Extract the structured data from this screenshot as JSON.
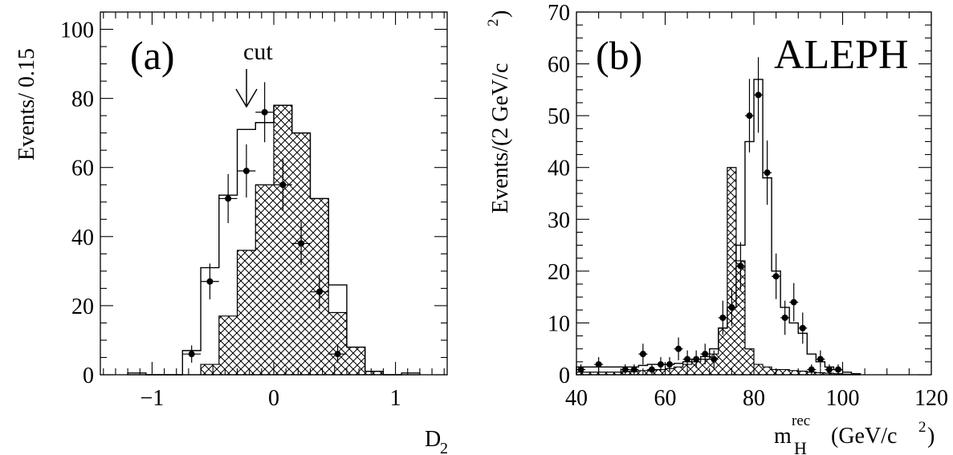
{
  "chart_data": [
    {
      "type": "histogram",
      "panel_label": "(a)",
      "xlabel_main": "D",
      "xlabel_sub": "2",
      "ylabel": "Events/ 0.15",
      "xlim": [
        -1.425,
        1.425
      ],
      "ylim": [
        0,
        105
      ],
      "xticks": [
        -1,
        0,
        1
      ],
      "xtick_labels": [
        "−1",
        "0",
        "1"
      ],
      "yticks": [
        0,
        20,
        40,
        60,
        80,
        100
      ],
      "ytick_labels": [
        "0",
        "20",
        "40",
        "60",
        "80",
        "100"
      ],
      "annotation": {
        "text": "cut",
        "x": -0.3
      },
      "bin_edges": [
        -1.2,
        -1.05,
        -0.9,
        -0.75,
        -0.6,
        -0.45,
        -0.3,
        -0.15,
        0.0,
        0.15,
        0.3,
        0.45,
        0.6,
        0.75,
        0.9,
        1.05,
        1.2
      ],
      "total_mc": [
        0.5,
        0,
        0,
        7,
        31,
        52,
        71,
        73,
        78,
        70,
        51,
        26,
        8,
        1,
        0,
        0.5
      ],
      "hatched_mc": [
        0,
        0,
        0,
        0,
        3,
        17,
        36,
        55,
        78,
        70,
        51,
        18,
        8,
        1,
        0,
        0
      ],
      "data_points": {
        "x": [
          -0.675,
          -0.525,
          -0.375,
          -0.225,
          -0.075,
          0.075,
          0.225,
          0.375,
          0.525
        ],
        "y": [
          6,
          27,
          51,
          59,
          76,
          55,
          38,
          24,
          6
        ],
        "err": [
          2.5,
          5.2,
          7.1,
          7.7,
          8.7,
          7.4,
          6.2,
          4.9,
          2.5
        ]
      }
    },
    {
      "type": "histogram",
      "panel_label": "(b)",
      "brand": "ALEPH",
      "xlabel_main": "m",
      "xlabel_sup": "rec",
      "xlabel_sub": "H",
      "xlabel_unit": "(GeV/c",
      "xlabel_unit_sup": "2",
      "xlabel_close": ")",
      "ylabel_main": "Events/(2 GeV/c",
      "ylabel_sup": "2",
      "ylabel_close": ")",
      "xlim": [
        40,
        120
      ],
      "ylim": [
        0,
        70
      ],
      "xticks": [
        40,
        60,
        80,
        100,
        120
      ],
      "xtick_labels": [
        "40",
        "60",
        "80",
        "100",
        "120"
      ],
      "yticks": [
        0,
        10,
        20,
        30,
        40,
        50,
        60,
        70
      ],
      "ytick_labels": [
        "0",
        "10",
        "20",
        "30",
        "40",
        "50",
        "60",
        "70"
      ],
      "bin_edges": [
        40,
        42,
        44,
        46,
        48,
        50,
        52,
        54,
        56,
        58,
        60,
        62,
        64,
        66,
        68,
        70,
        72,
        74,
        76,
        78,
        80,
        82,
        84,
        86,
        88,
        90,
        92,
        94,
        96,
        98,
        100,
        102,
        104
      ],
      "total_mc": [
        1.5,
        1.5,
        1.5,
        1.5,
        1.5,
        1.5,
        1.5,
        1.8,
        2,
        2,
        2,
        2.2,
        2.5,
        3,
        3.5,
        5,
        9,
        13,
        25,
        45,
        57,
        38,
        20,
        13,
        10,
        8,
        4,
        2.5,
        1.5,
        1,
        0.5,
        0.2
      ],
      "hatched_mc": [
        0.5,
        0.5,
        0.5,
        0.5,
        0.5,
        0.6,
        0.7,
        0.8,
        0.9,
        1,
        1.2,
        1.5,
        2,
        2.5,
        3,
        4,
        9,
        40,
        22,
        5,
        2,
        1.5,
        1,
        1,
        0.8,
        0.7,
        0.5,
        0.4,
        0.3,
        0.2,
        0.1,
        0
      ],
      "data_points": {
        "x": [
          41,
          45,
          51,
          53,
          55,
          57,
          59,
          61,
          63,
          65,
          67,
          69,
          71,
          73,
          75,
          77,
          79,
          81,
          83,
          85,
          87,
          89,
          91,
          93,
          95,
          97,
          99
        ],
        "y": [
          1,
          2,
          1,
          1,
          4,
          1,
          2,
          2,
          5,
          3,
          3,
          4,
          3,
          11,
          13,
          21,
          50,
          54,
          39,
          19,
          11,
          14,
          9,
          1,
          3,
          1,
          1
        ],
        "err": [
          1,
          1.4,
          1,
          1,
          2,
          1,
          1.4,
          1.4,
          2.2,
          1.7,
          1.7,
          2,
          1.7,
          3.3,
          3.6,
          4.6,
          7.1,
          7.3,
          6.2,
          4.4,
          3.3,
          3.7,
          3,
          1,
          1.7,
          1,
          1
        ]
      }
    }
  ]
}
